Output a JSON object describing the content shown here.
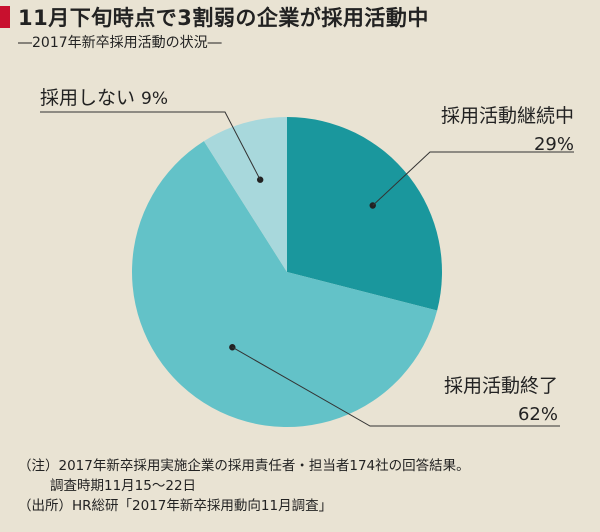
{
  "title": "11月下旬時点で3割弱の企業が採用活動中",
  "subtitle": "―2017年新卒採用活動の状況―",
  "chart_data": {
    "type": "pie",
    "slices": [
      {
        "label": "採用活動継続中",
        "value": 29,
        "value_label": "29%",
        "color": "#1a979d"
      },
      {
        "label": "採用活動終了",
        "value": 62,
        "value_label": "62%",
        "color": "#63c2c8"
      },
      {
        "label": "採用しない",
        "value": 9,
        "value_label": "9%",
        "color": "#a8d8dc"
      }
    ]
  },
  "notes": {
    "line1": "（注）2017年新卒採用実施企業の採用責任者・担当者174社の回答結果。",
    "line2": "調査時期11月15〜22日",
    "line3": "（出所）HR総研「2017年新卒採用動向11月調査」"
  }
}
